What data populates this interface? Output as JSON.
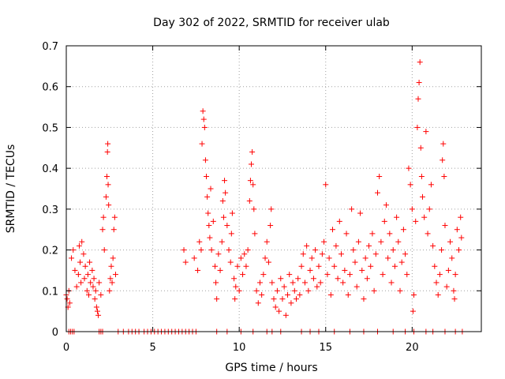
{
  "chart_data": {
    "type": "scatter",
    "title": "Day 302 of 2022, SRMTID for receiver ulab",
    "xlabel": "GPS time / hours",
    "ylabel": "SRMTID / TECUs",
    "xlim": [
      0,
      24
    ],
    "ylim": [
      0,
      0.7
    ],
    "xticks": [
      0,
      5,
      10,
      15,
      20
    ],
    "xtick_labels": [
      "0",
      "5",
      "10",
      "15",
      "20"
    ],
    "yticks": [
      0,
      0.1,
      0.2,
      0.3,
      0.4,
      0.5,
      0.6,
      0.7
    ],
    "ytick_labels": [
      "0",
      "0.1",
      "0.2",
      "0.3",
      "0.4",
      "0.5",
      "0.6",
      "0.7"
    ],
    "grid": true,
    "marker": "+",
    "color": "#ff0000",
    "series": [
      {
        "name": "SRMTID",
        "points": [
          [
            0.0,
            0.09
          ],
          [
            0.05,
            0.08
          ],
          [
            0.1,
            0.06
          ],
          [
            0.15,
            0.1
          ],
          [
            0.2,
            0.07
          ],
          [
            0.3,
            0.18
          ],
          [
            0.4,
            0.2
          ],
          [
            0.5,
            0.15
          ],
          [
            0.6,
            0.11
          ],
          [
            0.7,
            0.14
          ],
          [
            0.75,
            0.21
          ],
          [
            0.8,
            0.17
          ],
          [
            0.85,
            0.12
          ],
          [
            0.9,
            0.22
          ],
          [
            1.0,
            0.19
          ],
          [
            1.05,
            0.13
          ],
          [
            1.1,
            0.16
          ],
          [
            1.2,
            0.1
          ],
          [
            1.25,
            0.14
          ],
          [
            1.3,
            0.09
          ],
          [
            1.35,
            0.17
          ],
          [
            1.4,
            0.12
          ],
          [
            1.5,
            0.15
          ],
          [
            1.55,
            0.11
          ],
          [
            1.6,
            0.13
          ],
          [
            1.65,
            0.08
          ],
          [
            1.7,
            0.1
          ],
          [
            1.75,
            0.06
          ],
          [
            1.8,
            0.05
          ],
          [
            1.85,
            0.04
          ],
          [
            1.9,
            0.12
          ],
          [
            2.0,
            0.09
          ],
          [
            2.1,
            0.25
          ],
          [
            2.15,
            0.28
          ],
          [
            2.2,
            0.2
          ],
          [
            2.3,
            0.33
          ],
          [
            2.35,
            0.38
          ],
          [
            2.38,
            0.44
          ],
          [
            2.4,
            0.46
          ],
          [
            2.42,
            0.36
          ],
          [
            2.45,
            0.31
          ],
          [
            2.5,
            0.1
          ],
          [
            2.55,
            0.13
          ],
          [
            2.6,
            0.16
          ],
          [
            2.65,
            0.12
          ],
          [
            2.7,
            0.18
          ],
          [
            2.75,
            0.25
          ],
          [
            2.8,
            0.28
          ],
          [
            2.85,
            0.14
          ],
          [
            6.8,
            0.2
          ],
          [
            6.9,
            0.17
          ],
          [
            7.4,
            0.18
          ],
          [
            7.6,
            0.15
          ],
          [
            7.7,
            0.22
          ],
          [
            7.8,
            0.2
          ],
          [
            7.85,
            0.46
          ],
          [
            7.9,
            0.54
          ],
          [
            7.95,
            0.52
          ],
          [
            8.0,
            0.5
          ],
          [
            8.05,
            0.42
          ],
          [
            8.1,
            0.38
          ],
          [
            8.15,
            0.33
          ],
          [
            8.2,
            0.29
          ],
          [
            8.25,
            0.26
          ],
          [
            8.3,
            0.23
          ],
          [
            8.35,
            0.35
          ],
          [
            8.4,
            0.2
          ],
          [
            8.5,
            0.27
          ],
          [
            8.6,
            0.16
          ],
          [
            8.65,
            0.12
          ],
          [
            8.7,
            0.08
          ],
          [
            8.8,
            0.19
          ],
          [
            8.9,
            0.15
          ],
          [
            9.0,
            0.22
          ],
          [
            9.05,
            0.32
          ],
          [
            9.1,
            0.28
          ],
          [
            9.15,
            0.37
          ],
          [
            9.2,
            0.34
          ],
          [
            9.3,
            0.26
          ],
          [
            9.4,
            0.2
          ],
          [
            9.5,
            0.17
          ],
          [
            9.55,
            0.24
          ],
          [
            9.6,
            0.29
          ],
          [
            9.7,
            0.13
          ],
          [
            9.75,
            0.08
          ],
          [
            9.8,
            0.11
          ],
          [
            9.9,
            0.16
          ],
          [
            10.0,
            0.1
          ],
          [
            10.1,
            0.18
          ],
          [
            10.2,
            0.14
          ],
          [
            10.3,
            0.19
          ],
          [
            10.4,
            0.16
          ],
          [
            10.5,
            0.2
          ],
          [
            10.6,
            0.32
          ],
          [
            10.65,
            0.37
          ],
          [
            10.7,
            0.41
          ],
          [
            10.75,
            0.44
          ],
          [
            10.8,
            0.36
          ],
          [
            10.85,
            0.3
          ],
          [
            10.9,
            0.24
          ],
          [
            11.0,
            0.1
          ],
          [
            11.1,
            0.07
          ],
          [
            11.2,
            0.12
          ],
          [
            11.3,
            0.09
          ],
          [
            11.4,
            0.14
          ],
          [
            11.5,
            0.18
          ],
          [
            11.6,
            0.22
          ],
          [
            11.7,
            0.17
          ],
          [
            11.8,
            0.26
          ],
          [
            11.85,
            0.3
          ],
          [
            11.9,
            0.12
          ],
          [
            12.0,
            0.08
          ],
          [
            12.1,
            0.06
          ],
          [
            12.2,
            0.1
          ],
          [
            12.3,
            0.05
          ],
          [
            12.4,
            0.13
          ],
          [
            12.5,
            0.08
          ],
          [
            12.6,
            0.11
          ],
          [
            12.7,
            0.04
          ],
          [
            12.8,
            0.09
          ],
          [
            12.9,
            0.14
          ],
          [
            13.0,
            0.07
          ],
          [
            13.1,
            0.12
          ],
          [
            13.2,
            0.1
          ],
          [
            13.3,
            0.08
          ],
          [
            13.4,
            0.13
          ],
          [
            13.5,
            0.09
          ],
          [
            13.6,
            0.16
          ],
          [
            13.7,
            0.19
          ],
          [
            13.8,
            0.12
          ],
          [
            13.9,
            0.21
          ],
          [
            14.0,
            0.1
          ],
          [
            14.1,
            0.15
          ],
          [
            14.2,
            0.18
          ],
          [
            14.3,
            0.13
          ],
          [
            14.4,
            0.2
          ],
          [
            14.5,
            0.11
          ],
          [
            14.6,
            0.16
          ],
          [
            14.7,
            0.12
          ],
          [
            14.8,
            0.19
          ],
          [
            14.9,
            0.22
          ],
          [
            15.0,
            0.36
          ],
          [
            15.1,
            0.14
          ],
          [
            15.2,
            0.18
          ],
          [
            15.3,
            0.09
          ],
          [
            15.4,
            0.25
          ],
          [
            15.5,
            0.16
          ],
          [
            15.6,
            0.21
          ],
          [
            15.7,
            0.13
          ],
          [
            15.8,
            0.27
          ],
          [
            15.9,
            0.19
          ],
          [
            16.0,
            0.12
          ],
          [
            16.1,
            0.15
          ],
          [
            16.2,
            0.24
          ],
          [
            16.3,
            0.09
          ],
          [
            16.4,
            0.14
          ],
          [
            16.5,
            0.3
          ],
          [
            16.6,
            0.2
          ],
          [
            16.7,
            0.17
          ],
          [
            16.8,
            0.11
          ],
          [
            16.9,
            0.22
          ],
          [
            17.0,
            0.29
          ],
          [
            17.1,
            0.15
          ],
          [
            17.2,
            0.08
          ],
          [
            17.3,
            0.18
          ],
          [
            17.4,
            0.13
          ],
          [
            17.5,
            0.21
          ],
          [
            17.6,
            0.16
          ],
          [
            17.7,
            0.24
          ],
          [
            17.8,
            0.1
          ],
          [
            17.9,
            0.19
          ],
          [
            18.0,
            0.34
          ],
          [
            18.1,
            0.38
          ],
          [
            18.2,
            0.22
          ],
          [
            18.3,
            0.14
          ],
          [
            18.4,
            0.27
          ],
          [
            18.5,
            0.31
          ],
          [
            18.6,
            0.18
          ],
          [
            18.7,
            0.24
          ],
          [
            18.8,
            0.12
          ],
          [
            18.9,
            0.2
          ],
          [
            19.0,
            0.16
          ],
          [
            19.1,
            0.28
          ],
          [
            19.2,
            0.22
          ],
          [
            19.3,
            0.1
          ],
          [
            19.4,
            0.17
          ],
          [
            19.5,
            0.25
          ],
          [
            19.6,
            0.19
          ],
          [
            19.7,
            0.14
          ],
          [
            19.8,
            0.4
          ],
          [
            19.9,
            0.36
          ],
          [
            20.0,
            0.3
          ],
          [
            20.05,
            0.05
          ],
          [
            20.1,
            0.09
          ],
          [
            20.2,
            0.27
          ],
          [
            20.3,
            0.5
          ],
          [
            20.35,
            0.57
          ],
          [
            20.4,
            0.61
          ],
          [
            20.45,
            0.66
          ],
          [
            20.5,
            0.45
          ],
          [
            20.55,
            0.38
          ],
          [
            20.6,
            0.33
          ],
          [
            20.7,
            0.28
          ],
          [
            20.8,
            0.49
          ],
          [
            20.9,
            0.24
          ],
          [
            21.0,
            0.3
          ],
          [
            21.1,
            0.36
          ],
          [
            21.2,
            0.21
          ],
          [
            21.3,
            0.16
          ],
          [
            21.4,
            0.12
          ],
          [
            21.5,
            0.09
          ],
          [
            21.6,
            0.14
          ],
          [
            21.7,
            0.2
          ],
          [
            21.75,
            0.42
          ],
          [
            21.8,
            0.46
          ],
          [
            21.85,
            0.38
          ],
          [
            21.9,
            0.26
          ],
          [
            22.0,
            0.11
          ],
          [
            22.1,
            0.15
          ],
          [
            22.2,
            0.22
          ],
          [
            22.3,
            0.18
          ],
          [
            22.4,
            0.1
          ],
          [
            22.45,
            0.08
          ],
          [
            22.5,
            0.14
          ],
          [
            22.6,
            0.25
          ],
          [
            22.7,
            0.2
          ],
          [
            22.8,
            0.28
          ],
          [
            22.85,
            0.23
          ]
        ],
        "zero_points_x": [
          0.15,
          0.25,
          0.35,
          0.45,
          1.9,
          2.0,
          2.1,
          3.0,
          3.3,
          3.6,
          3.8,
          4.0,
          4.2,
          4.5,
          4.7,
          4.9,
          5.1,
          5.3,
          5.5,
          5.7,
          5.9,
          6.1,
          6.3,
          6.5,
          6.7,
          6.9,
          7.1,
          7.3,
          7.5,
          8.7,
          9.3,
          10.1,
          10.8,
          11.6,
          11.9,
          12.4,
          13.6,
          14.1,
          14.6,
          15.5,
          16.4,
          17.2,
          18.0,
          18.9,
          19.6,
          20.1,
          20.8,
          21.2,
          21.9,
          22.5,
          22.9
        ]
      }
    ]
  }
}
